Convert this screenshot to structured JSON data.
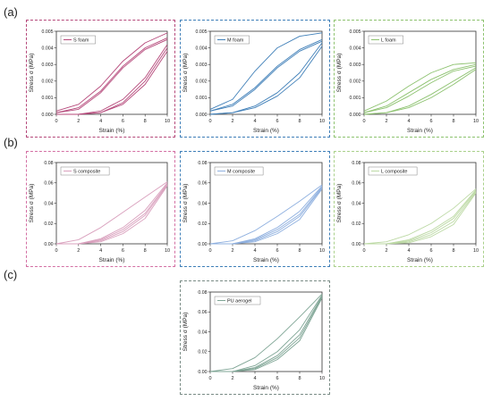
{
  "section_labels": [
    "(a)",
    "(b)",
    "(c)"
  ],
  "chart_data": [
    {
      "type": "line",
      "legend": "S foam",
      "xlabel": "Strain (%)",
      "ylabel": "Stress σ (MPa)",
      "xlim": [
        0,
        10
      ],
      "ylim": [
        0,
        0.005
      ],
      "x_ticks": [
        "0",
        "2",
        "4",
        "6",
        "8",
        "10"
      ],
      "y_ticks": [
        "0.000",
        "0.001",
        "0.002",
        "0.003",
        "0.004",
        "0.005"
      ],
      "color": "#b5487a",
      "border_color": "#b5487a",
      "series": [
        {
          "x": [
            0,
            2,
            4,
            6,
            8,
            10
          ],
          "y": [
            0.0002,
            0.0006,
            0.0017,
            0.0032,
            0.0043,
            0.0049
          ]
        },
        {
          "x": [
            0,
            2,
            4,
            6,
            8,
            10
          ],
          "y": [
            0.0001,
            0.0004,
            0.0014,
            0.0029,
            0.004,
            0.0046
          ]
        },
        {
          "x": [
            0,
            2,
            4,
            6,
            8,
            10
          ],
          "y": [
            0.0001,
            0.0003,
            0.0013,
            0.0028,
            0.0039,
            0.0045
          ]
        },
        {
          "x": [
            0,
            2,
            4,
            6,
            8,
            10
          ],
          "y": [
            0.0,
            0.0,
            0.0002,
            0.0009,
            0.0022,
            0.0042
          ]
        },
        {
          "x": [
            0,
            2,
            4,
            6,
            8,
            10
          ],
          "y": [
            0.0,
            0.0,
            0.0001,
            0.0007,
            0.002,
            0.004
          ]
        },
        {
          "x": [
            0,
            2,
            4,
            6,
            8,
            10
          ],
          "y": [
            0.0,
            0.0,
            0.0001,
            0.0006,
            0.0018,
            0.0038
          ]
        }
      ]
    },
    {
      "type": "line",
      "legend": "M foam",
      "xlabel": "Strain (%)",
      "ylabel": "Stress σ (MPa)",
      "xlim": [
        0,
        10
      ],
      "ylim": [
        0,
        0.005
      ],
      "x_ticks": [
        "0",
        "2",
        "4",
        "6",
        "8",
        "10"
      ],
      "y_ticks": [
        "0.000",
        "0.001",
        "0.002",
        "0.003",
        "0.004",
        "0.005"
      ],
      "color": "#3f7fb8",
      "border_color": "#3f7fb8",
      "series": [
        {
          "x": [
            0,
            2,
            4,
            6,
            8,
            10
          ],
          "y": [
            0.0003,
            0.0009,
            0.0026,
            0.004,
            0.0047,
            0.0049
          ]
        },
        {
          "x": [
            0,
            2,
            4,
            6,
            8,
            10
          ],
          "y": [
            0.0002,
            0.0006,
            0.0016,
            0.0029,
            0.0039,
            0.0045
          ]
        },
        {
          "x": [
            0,
            2,
            4,
            6,
            8,
            10
          ],
          "y": [
            0.0002,
            0.0005,
            0.0015,
            0.0028,
            0.0038,
            0.0044
          ]
        },
        {
          "x": [
            0,
            2,
            4,
            6,
            8,
            10
          ],
          "y": [
            0.0,
            0.0001,
            0.0005,
            0.0013,
            0.0025,
            0.0043
          ]
        },
        {
          "x": [
            0,
            2,
            4,
            6,
            8,
            10
          ],
          "y": [
            0.0,
            0.0001,
            0.0004,
            0.0011,
            0.0022,
            0.0041
          ]
        }
      ]
    },
    {
      "type": "line",
      "legend": "L foam",
      "xlabel": "Strain (%)",
      "ylabel": "Stress σ (MPa)",
      "xlim": [
        0,
        10
      ],
      "ylim": [
        0,
        0.005
      ],
      "x_ticks": [
        "0",
        "2",
        "4",
        "6",
        "8",
        "10"
      ],
      "y_ticks": [
        "0.000",
        "0.001",
        "0.002",
        "0.003",
        "0.004",
        "0.005"
      ],
      "color": "#8dc26f",
      "border_color": "#8dc26f",
      "series": [
        {
          "x": [
            0,
            2,
            4,
            6,
            8,
            10
          ],
          "y": [
            0.0002,
            0.0008,
            0.0017,
            0.0025,
            0.003,
            0.0031
          ]
        },
        {
          "x": [
            0,
            2,
            4,
            6,
            8,
            10
          ],
          "y": [
            0.0001,
            0.0005,
            0.0013,
            0.0021,
            0.0027,
            0.003
          ]
        },
        {
          "x": [
            0,
            2,
            4,
            6,
            8,
            10
          ],
          "y": [
            0.0001,
            0.0004,
            0.0011,
            0.0019,
            0.0026,
            0.0029
          ]
        },
        {
          "x": [
            0,
            2,
            4,
            6,
            8,
            10
          ],
          "y": [
            0.0,
            0.0001,
            0.0005,
            0.0012,
            0.002,
            0.0028
          ]
        },
        {
          "x": [
            0,
            2,
            4,
            6,
            8,
            10
          ],
          "y": [
            0.0,
            0.0001,
            0.0004,
            0.001,
            0.0018,
            0.0027
          ]
        }
      ]
    },
    {
      "type": "line",
      "legend": "S composite",
      "xlabel": "Strain (%)",
      "ylabel": "Stress σ (MPa)",
      "xlim": [
        0,
        10
      ],
      "ylim": [
        0,
        0.08
      ],
      "x_ticks": [
        "0",
        "2",
        "4",
        "6",
        "8",
        "10"
      ],
      "y_ticks": [
        "0.00",
        "0.02",
        "0.04",
        "0.06",
        "0.08"
      ],
      "color": "#d9a0bd",
      "border_color": "#d36fa3",
      "series": [
        {
          "x": [
            0,
            2,
            4,
            6,
            8,
            10
          ],
          "y": [
            0.0,
            0.004,
            0.016,
            0.031,
            0.046,
            0.061
          ]
        },
        {
          "x": [
            0,
            2,
            4,
            6,
            8,
            10
          ],
          "y": [
            0.0,
            0.0,
            0.005,
            0.016,
            0.033,
            0.06
          ]
        },
        {
          "x": [
            0,
            2,
            4,
            6,
            8,
            10
          ],
          "y": [
            0.0,
            0.0,
            0.004,
            0.014,
            0.03,
            0.059
          ]
        },
        {
          "x": [
            0,
            2,
            4,
            6,
            8,
            10
          ],
          "y": [
            0.0,
            0.0,
            0.003,
            0.012,
            0.028,
            0.058
          ]
        },
        {
          "x": [
            0,
            2,
            4,
            6,
            8,
            10
          ],
          "y": [
            0.0,
            0.0,
            0.002,
            0.01,
            0.025,
            0.057
          ]
        }
      ]
    },
    {
      "type": "line",
      "legend": "M composite",
      "xlabel": "Strain (%)",
      "ylabel": "Stress σ (MPa)",
      "xlim": [
        0,
        10
      ],
      "ylim": [
        0,
        0.08
      ],
      "x_ticks": [
        "0",
        "2",
        "4",
        "6",
        "8",
        "10"
      ],
      "y_ticks": [
        "0.00",
        "0.02",
        "0.04",
        "0.06",
        "0.08"
      ],
      "color": "#8fb0df",
      "border_color": "#3f7fb8",
      "series": [
        {
          "x": [
            0,
            2,
            4,
            6,
            8,
            10
          ],
          "y": [
            0.0,
            0.003,
            0.013,
            0.027,
            0.042,
            0.058
          ]
        },
        {
          "x": [
            0,
            2,
            4,
            6,
            8,
            10
          ],
          "y": [
            0.0,
            0.0,
            0.005,
            0.016,
            0.032,
            0.057
          ]
        },
        {
          "x": [
            0,
            2,
            4,
            6,
            8,
            10
          ],
          "y": [
            0.0,
            0.0,
            0.004,
            0.014,
            0.029,
            0.056
          ]
        },
        {
          "x": [
            0,
            2,
            4,
            6,
            8,
            10
          ],
          "y": [
            0.0,
            0.0,
            0.003,
            0.012,
            0.027,
            0.055
          ]
        },
        {
          "x": [
            0,
            2,
            4,
            6,
            8,
            10
          ],
          "y": [
            0.0,
            0.0,
            0.002,
            0.01,
            0.024,
            0.054
          ]
        }
      ]
    },
    {
      "type": "line",
      "legend": "L composite",
      "xlabel": "Strain (%)",
      "ylabel": "Stress σ (MPa)",
      "xlim": [
        0,
        10
      ],
      "ylim": [
        0,
        0.08
      ],
      "x_ticks": [
        "0",
        "2",
        "4",
        "6",
        "8",
        "10"
      ],
      "y_ticks": [
        "0.00",
        "0.02",
        "0.04",
        "0.06",
        "0.08"
      ],
      "color": "#bcd9a4",
      "border_color": "#a9d08a",
      "series": [
        {
          "x": [
            0,
            2,
            4,
            6,
            8,
            10
          ],
          "y": [
            0.0,
            0.002,
            0.009,
            0.02,
            0.035,
            0.054
          ]
        },
        {
          "x": [
            0,
            2,
            4,
            6,
            8,
            10
          ],
          "y": [
            0.0,
            0.0,
            0.004,
            0.013,
            0.027,
            0.053
          ]
        },
        {
          "x": [
            0,
            2,
            4,
            6,
            8,
            10
          ],
          "y": [
            0.0,
            0.0,
            0.003,
            0.011,
            0.025,
            0.052
          ]
        },
        {
          "x": [
            0,
            2,
            4,
            6,
            8,
            10
          ],
          "y": [
            0.0,
            0.0,
            0.002,
            0.009,
            0.022,
            0.051
          ]
        },
        {
          "x": [
            0,
            2,
            4,
            6,
            8,
            10
          ],
          "y": [
            0.0,
            0.0,
            0.001,
            0.007,
            0.019,
            0.05
          ]
        }
      ]
    },
    {
      "type": "line",
      "legend": "PU aerogel",
      "xlabel": "Strain (%)",
      "ylabel": "Stress σ (MPa)",
      "xlim": [
        0,
        10
      ],
      "ylim": [
        0,
        0.08
      ],
      "x_ticks": [
        "0",
        "2",
        "4",
        "6",
        "8",
        "10"
      ],
      "y_ticks": [
        "0.00",
        "0.02",
        "0.04",
        "0.06",
        "0.08"
      ],
      "color": "#7fa595",
      "border_color": "#7a8c86",
      "series": [
        {
          "x": [
            0,
            2,
            4,
            6,
            8,
            10
          ],
          "y": [
            0.0,
            0.003,
            0.014,
            0.033,
            0.055,
            0.078
          ]
        },
        {
          "x": [
            0,
            2,
            4,
            6,
            8,
            10
          ],
          "y": [
            0.0,
            0.0,
            0.006,
            0.02,
            0.042,
            0.077
          ]
        },
        {
          "x": [
            0,
            2,
            4,
            6,
            8,
            10
          ],
          "y": [
            0.0,
            0.0,
            0.004,
            0.016,
            0.037,
            0.076
          ]
        },
        {
          "x": [
            0,
            2,
            4,
            6,
            8,
            10
          ],
          "y": [
            0.0,
            0.0,
            0.003,
            0.014,
            0.034,
            0.075
          ]
        },
        {
          "x": [
            0,
            2,
            4,
            6,
            8,
            10
          ],
          "y": [
            0.0,
            0.0,
            0.002,
            0.012,
            0.031,
            0.074
          ]
        }
      ]
    }
  ]
}
